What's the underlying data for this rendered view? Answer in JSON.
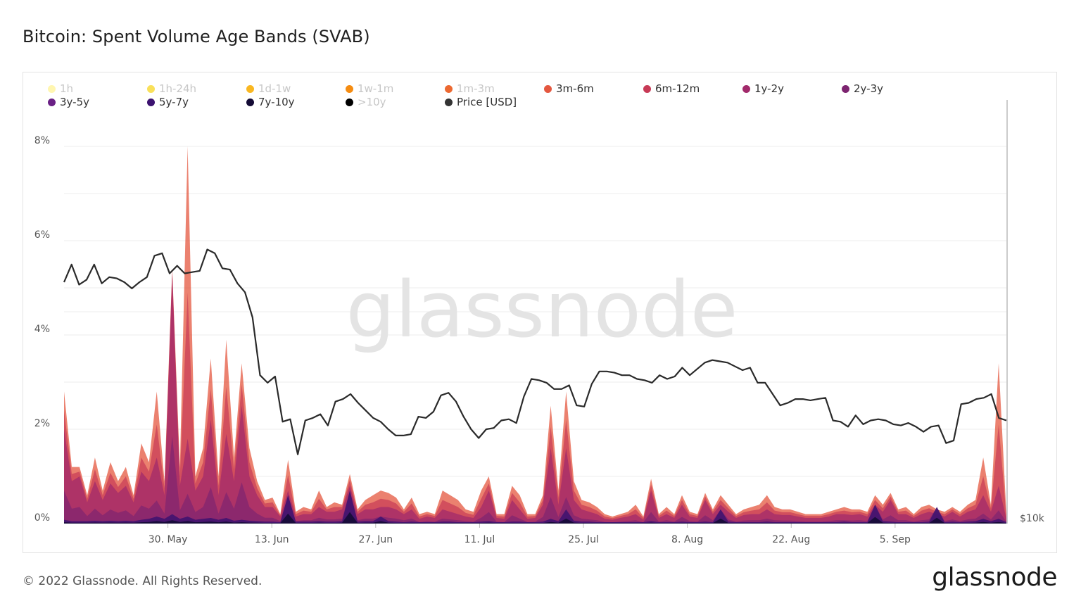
{
  "title": "Bitcoin: Spent Volume Age Bands (SVAB)",
  "footer": "© 2022 Glassnode. All Rights Reserved.",
  "logo": "glassnode",
  "watermark": "glassnode",
  "chart_data": {
    "type": "area",
    "y_left_ticks": [
      "0%",
      "2%",
      "4%",
      "6%",
      "8%"
    ],
    "y_left_range": [
      0,
      8
    ],
    "y_right_label": "$10k",
    "x_ticks": [
      "30. May",
      "13. Jun",
      "27. Jun",
      "11. Jul",
      "25. Jul",
      "8. Aug",
      "22. Aug",
      "5. Sep"
    ],
    "x_range_days": [
      0,
      127
    ],
    "x_tick_days": [
      14,
      28,
      42,
      56,
      70,
      84,
      98,
      112
    ],
    "legend": [
      {
        "name": "1h",
        "color": "#fff6b0",
        "muted": true
      },
      {
        "name": "1h-24h",
        "color": "#f9e05a",
        "muted": true
      },
      {
        "name": "1d-1w",
        "color": "#f9b721",
        "muted": true
      },
      {
        "name": "1w-1m",
        "color": "#f58c11",
        "muted": true
      },
      {
        "name": "1m-3m",
        "color": "#ec6931",
        "muted": true
      },
      {
        "name": "3m-6m",
        "color": "#e4573f",
        "muted": false
      },
      {
        "name": "6m-12m",
        "color": "#c73a56",
        "muted": false
      },
      {
        "name": "1y-2y",
        "color": "#a22a6b",
        "muted": false
      },
      {
        "name": "2y-3y",
        "color": "#7d2470",
        "muted": false
      },
      {
        "name": "3y-5y",
        "color": "#6a2085",
        "muted": false
      },
      {
        "name": "5y-7y",
        "color": "#3c1270",
        "muted": false
      },
      {
        "name": "7y-10y",
        "color": "#140b35",
        "muted": false
      },
      {
        "name": ">10y",
        "color": "#000000",
        "muted": true
      },
      {
        "name": "Price [USD]",
        "color": "#333333",
        "muted": false
      }
    ],
    "series_total": [
      2.8,
      1.2,
      1.2,
      0.6,
      1.4,
      0.7,
      1.3,
      0.9,
      1.2,
      0.6,
      1.7,
      1.3,
      2.8,
      0.9,
      5.4,
      1.2,
      8.0,
      1.0,
      1.6,
      3.5,
      1.0,
      3.9,
      1.4,
      3.4,
      1.6,
      0.9,
      0.5,
      0.55,
      0.2,
      1.35,
      0.25,
      0.35,
      0.3,
      0.7,
      0.35,
      0.45,
      0.4,
      1.05,
      0.3,
      0.5,
      0.6,
      0.7,
      0.65,
      0.55,
      0.3,
      0.55,
      0.2,
      0.25,
      0.2,
      0.7,
      0.6,
      0.5,
      0.3,
      0.25,
      0.7,
      1.0,
      0.2,
      0.2,
      0.8,
      0.6,
      0.2,
      0.2,
      0.6,
      2.5,
      0.7,
      2.8,
      0.9,
      0.5,
      0.45,
      0.35,
      0.2,
      0.15,
      0.2,
      0.25,
      0.4,
      0.15,
      0.95,
      0.2,
      0.35,
      0.2,
      0.6,
      0.25,
      0.2,
      0.65,
      0.3,
      0.6,
      0.4,
      0.2,
      0.3,
      0.35,
      0.4,
      0.6,
      0.35,
      0.3,
      0.3,
      0.25,
      0.2,
      0.2,
      0.2,
      0.25,
      0.3,
      0.35,
      0.3,
      0.3,
      0.25,
      0.6,
      0.4,
      0.65,
      0.3,
      0.35,
      0.2,
      0.35,
      0.4,
      0.3,
      0.25,
      0.35,
      0.25,
      0.4,
      0.5,
      1.4,
      0.4,
      3.4,
      0.2
    ],
    "series_mid": [
      2.0,
      0.9,
      1.0,
      0.45,
      0.9,
      0.5,
      0.85,
      0.65,
      0.8,
      0.45,
      1.1,
      0.9,
      1.4,
      0.6,
      5.3,
      0.8,
      1.8,
      0.7,
      1.0,
      2.2,
      0.6,
      1.9,
      0.9,
      2.5,
      1.0,
      0.6,
      0.35,
      0.35,
      0.15,
      0.7,
      0.15,
      0.2,
      0.2,
      0.35,
      0.25,
      0.25,
      0.3,
      0.8,
      0.2,
      0.3,
      0.3,
      0.35,
      0.35,
      0.3,
      0.2,
      0.3,
      0.1,
      0.15,
      0.12,
      0.3,
      0.25,
      0.2,
      0.15,
      0.12,
      0.35,
      0.7,
      0.12,
      0.1,
      0.5,
      0.3,
      0.1,
      0.12,
      0.4,
      1.6,
      0.4,
      1.6,
      0.5,
      0.3,
      0.25,
      0.2,
      0.1,
      0.08,
      0.12,
      0.15,
      0.2,
      0.08,
      0.7,
      0.12,
      0.2,
      0.12,
      0.4,
      0.15,
      0.12,
      0.5,
      0.2,
      0.4,
      0.25,
      0.12,
      0.18,
      0.2,
      0.2,
      0.3,
      0.2,
      0.18,
      0.18,
      0.15,
      0.12,
      0.12,
      0.12,
      0.15,
      0.2,
      0.2,
      0.18,
      0.2,
      0.15,
      0.4,
      0.25,
      0.5,
      0.2,
      0.2,
      0.12,
      0.2,
      0.25,
      0.2,
      0.15,
      0.25,
      0.15,
      0.25,
      0.3,
      0.6,
      0.25,
      0.8,
      0.1
    ],
    "series_old": [
      0.08,
      0.05,
      0.05,
      0.05,
      0.06,
      0.05,
      0.06,
      0.05,
      0.06,
      0.05,
      0.08,
      0.1,
      0.15,
      0.1,
      0.2,
      0.1,
      0.15,
      0.08,
      0.1,
      0.12,
      0.08,
      0.12,
      0.06,
      0.08,
      0.06,
      0.05,
      0.04,
      0.04,
      0.03,
      0.6,
      0.04,
      0.04,
      0.04,
      0.05,
      0.04,
      0.04,
      0.05,
      0.7,
      0.04,
      0.05,
      0.05,
      0.15,
      0.05,
      0.04,
      0.03,
      0.04,
      0.03,
      0.03,
      0.03,
      0.04,
      0.04,
      0.03,
      0.03,
      0.03,
      0.04,
      0.05,
      0.03,
      0.03,
      0.04,
      0.04,
      0.03,
      0.03,
      0.04,
      0.1,
      0.05,
      0.3,
      0.06,
      0.04,
      0.04,
      0.03,
      0.03,
      0.03,
      0.03,
      0.03,
      0.03,
      0.03,
      0.05,
      0.03,
      0.03,
      0.03,
      0.04,
      0.03,
      0.03,
      0.04,
      0.03,
      0.3,
      0.04,
      0.03,
      0.03,
      0.03,
      0.03,
      0.04,
      0.03,
      0.03,
      0.03,
      0.03,
      0.03,
      0.03,
      0.03,
      0.03,
      0.03,
      0.04,
      0.03,
      0.03,
      0.03,
      0.4,
      0.05,
      0.04,
      0.03,
      0.03,
      0.03,
      0.03,
      0.04,
      0.35,
      0.03,
      0.04,
      0.03,
      0.04,
      0.05,
      0.1,
      0.05,
      0.1,
      0.03
    ],
    "price_usd": [
      29200,
      30600,
      29000,
      29400,
      30600,
      29100,
      29600,
      29500,
      29200,
      28700,
      29200,
      29600,
      31300,
      31500,
      29900,
      30500,
      29900,
      30000,
      30100,
      31800,
      31500,
      30300,
      30200,
      29100,
      28400,
      26400,
      21800,
      21200,
      21700,
      18100,
      18300,
      15500,
      18200,
      18400,
      18700,
      17800,
      19700,
      19900,
      20300,
      19600,
      19000,
      18400,
      18100,
      17500,
      17000,
      17000,
      17100,
      18500,
      18400,
      18900,
      20200,
      20400,
      19700,
      18500,
      17500,
      16800,
      17500,
      17600,
      18200,
      18300,
      18000,
      20100,
      21500,
      21400,
      21200,
      20700,
      20700,
      21000,
      19400,
      19300,
      21100,
      22100,
      22100,
      22000,
      21800,
      21800,
      21500,
      21400,
      21200,
      21800,
      21500,
      21700,
      22400,
      21800,
      22300,
      22800,
      23000,
      22900,
      22800,
      22500,
      22200,
      22400,
      21200,
      21200,
      20300,
      19400,
      19600,
      19900,
      19900,
      19800,
      19900,
      20000,
      18200,
      18100,
      17700,
      18600,
      17900,
      18200,
      18300,
      18200,
      17900,
      17800,
      18000,
      17700,
      17300,
      17700,
      17800,
      16400,
      16600,
      19500,
      19600,
      19900,
      20000,
      20300,
      18400,
      18200
    ]
  }
}
